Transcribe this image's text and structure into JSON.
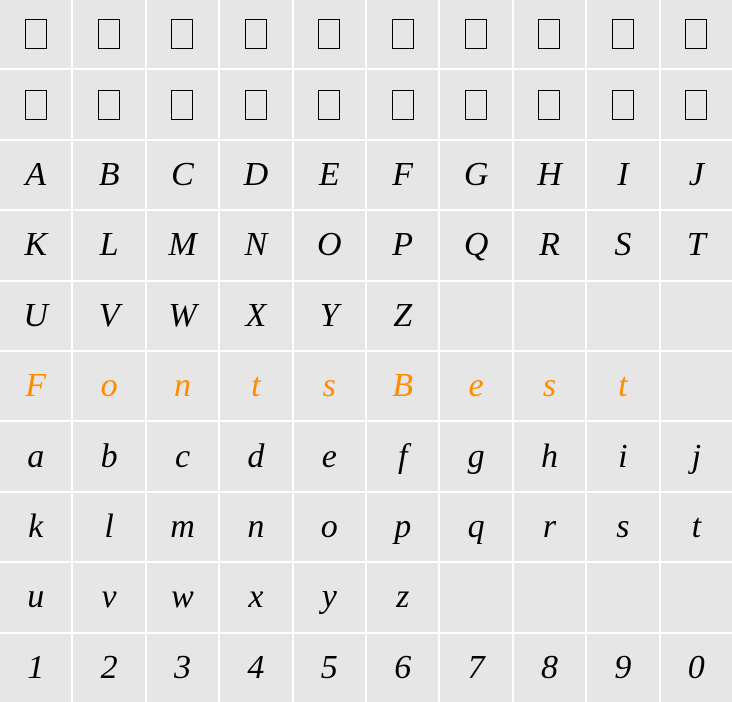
{
  "grid": {
    "columns": 10,
    "rows": 10,
    "cell_bg": "#e6e6e6",
    "gap_color": "#ffffff",
    "font_family": "cursive",
    "font_size": 34,
    "text_color": "#000000",
    "accent_color": "#ff8c00",
    "cells": [
      [
        "□",
        "□",
        "□",
        "□",
        "□",
        "□",
        "□",
        "□",
        "□",
        "□"
      ],
      [
        "□",
        "□",
        "□",
        "□",
        "□",
        "□",
        "□",
        "□",
        "□",
        "□"
      ],
      [
        "A",
        "B",
        "C",
        "D",
        "E",
        "F",
        "G",
        "H",
        "I",
        "J"
      ],
      [
        "K",
        "L",
        "M",
        "N",
        "O",
        "P",
        "Q",
        "R",
        "S",
        "T"
      ],
      [
        "U",
        "V",
        "W",
        "X",
        "Y",
        "Z",
        "",
        "",
        "",
        ""
      ],
      [
        "F",
        "o",
        "n",
        "t",
        "s",
        "B",
        "e",
        "s",
        "t",
        ""
      ],
      [
        "a",
        "b",
        "c",
        "d",
        "e",
        "f",
        "g",
        "h",
        "i",
        "j"
      ],
      [
        "k",
        "l",
        "m",
        "n",
        "o",
        "p",
        "q",
        "r",
        "s",
        "t"
      ],
      [
        "u",
        "v",
        "w",
        "x",
        "y",
        "z",
        "",
        "",
        "",
        ""
      ],
      [
        "1",
        "2",
        "3",
        "4",
        "5",
        "6",
        "7",
        "8",
        "9",
        "0"
      ]
    ],
    "accent_row": 5,
    "tofu_rows": [
      0,
      1
    ]
  }
}
